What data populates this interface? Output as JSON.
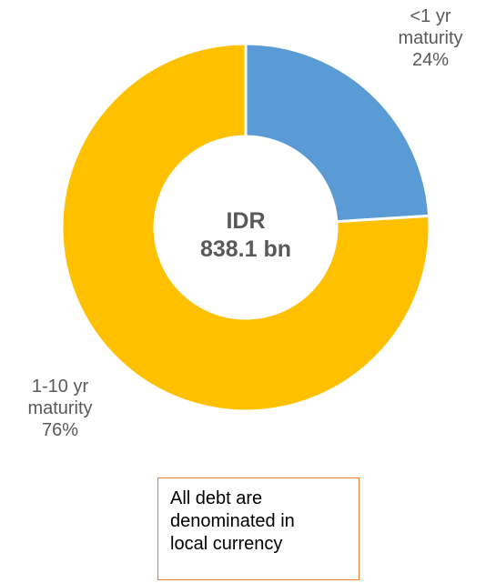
{
  "chart_data": {
    "type": "pie",
    "categories": [
      "<1 yr maturity",
      "1-10 yr maturity"
    ],
    "values": [
      24,
      76
    ],
    "colors": [
      "#5B9BD5",
      "#FFC000"
    ],
    "center_label": [
      "IDR",
      "838.1 bn"
    ],
    "labels": [
      {
        "lines": [
          "<1 yr",
          "maturity",
          "24%"
        ]
      },
      {
        "lines": [
          "1-10 yr",
          "maturity",
          "76%"
        ]
      }
    ]
  },
  "note": {
    "lines": [
      "All debt are",
      "denominated in",
      "local currency"
    ],
    "border_color": "#ED7D31"
  }
}
